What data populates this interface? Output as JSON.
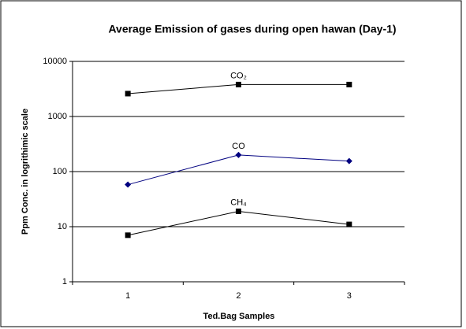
{
  "chart_data": {
    "type": "line",
    "title": "Average Emission of gases during open hawan (Day-1)",
    "x_label": "Ted.Bag Samples",
    "y_label": "Ppm Conc. in logrithimic scale",
    "categories": [
      "1",
      "2",
      "3"
    ],
    "log_y": true,
    "grid": true,
    "ylim": [
      1,
      10000
    ],
    "yticks": [
      1,
      10,
      100,
      1000,
      10000
    ],
    "series": [
      {
        "name": "CO₂",
        "color": "#000000",
        "marker": "square",
        "values": [
          2600,
          3800,
          3800
        ]
      },
      {
        "name": "CO",
        "color": "#000080",
        "marker": "diamond",
        "values": [
          58,
          200,
          155
        ]
      },
      {
        "name": "CH₄",
        "color": "#000000",
        "marker": "square",
        "values": [
          7,
          19,
          11
        ]
      }
    ]
  }
}
